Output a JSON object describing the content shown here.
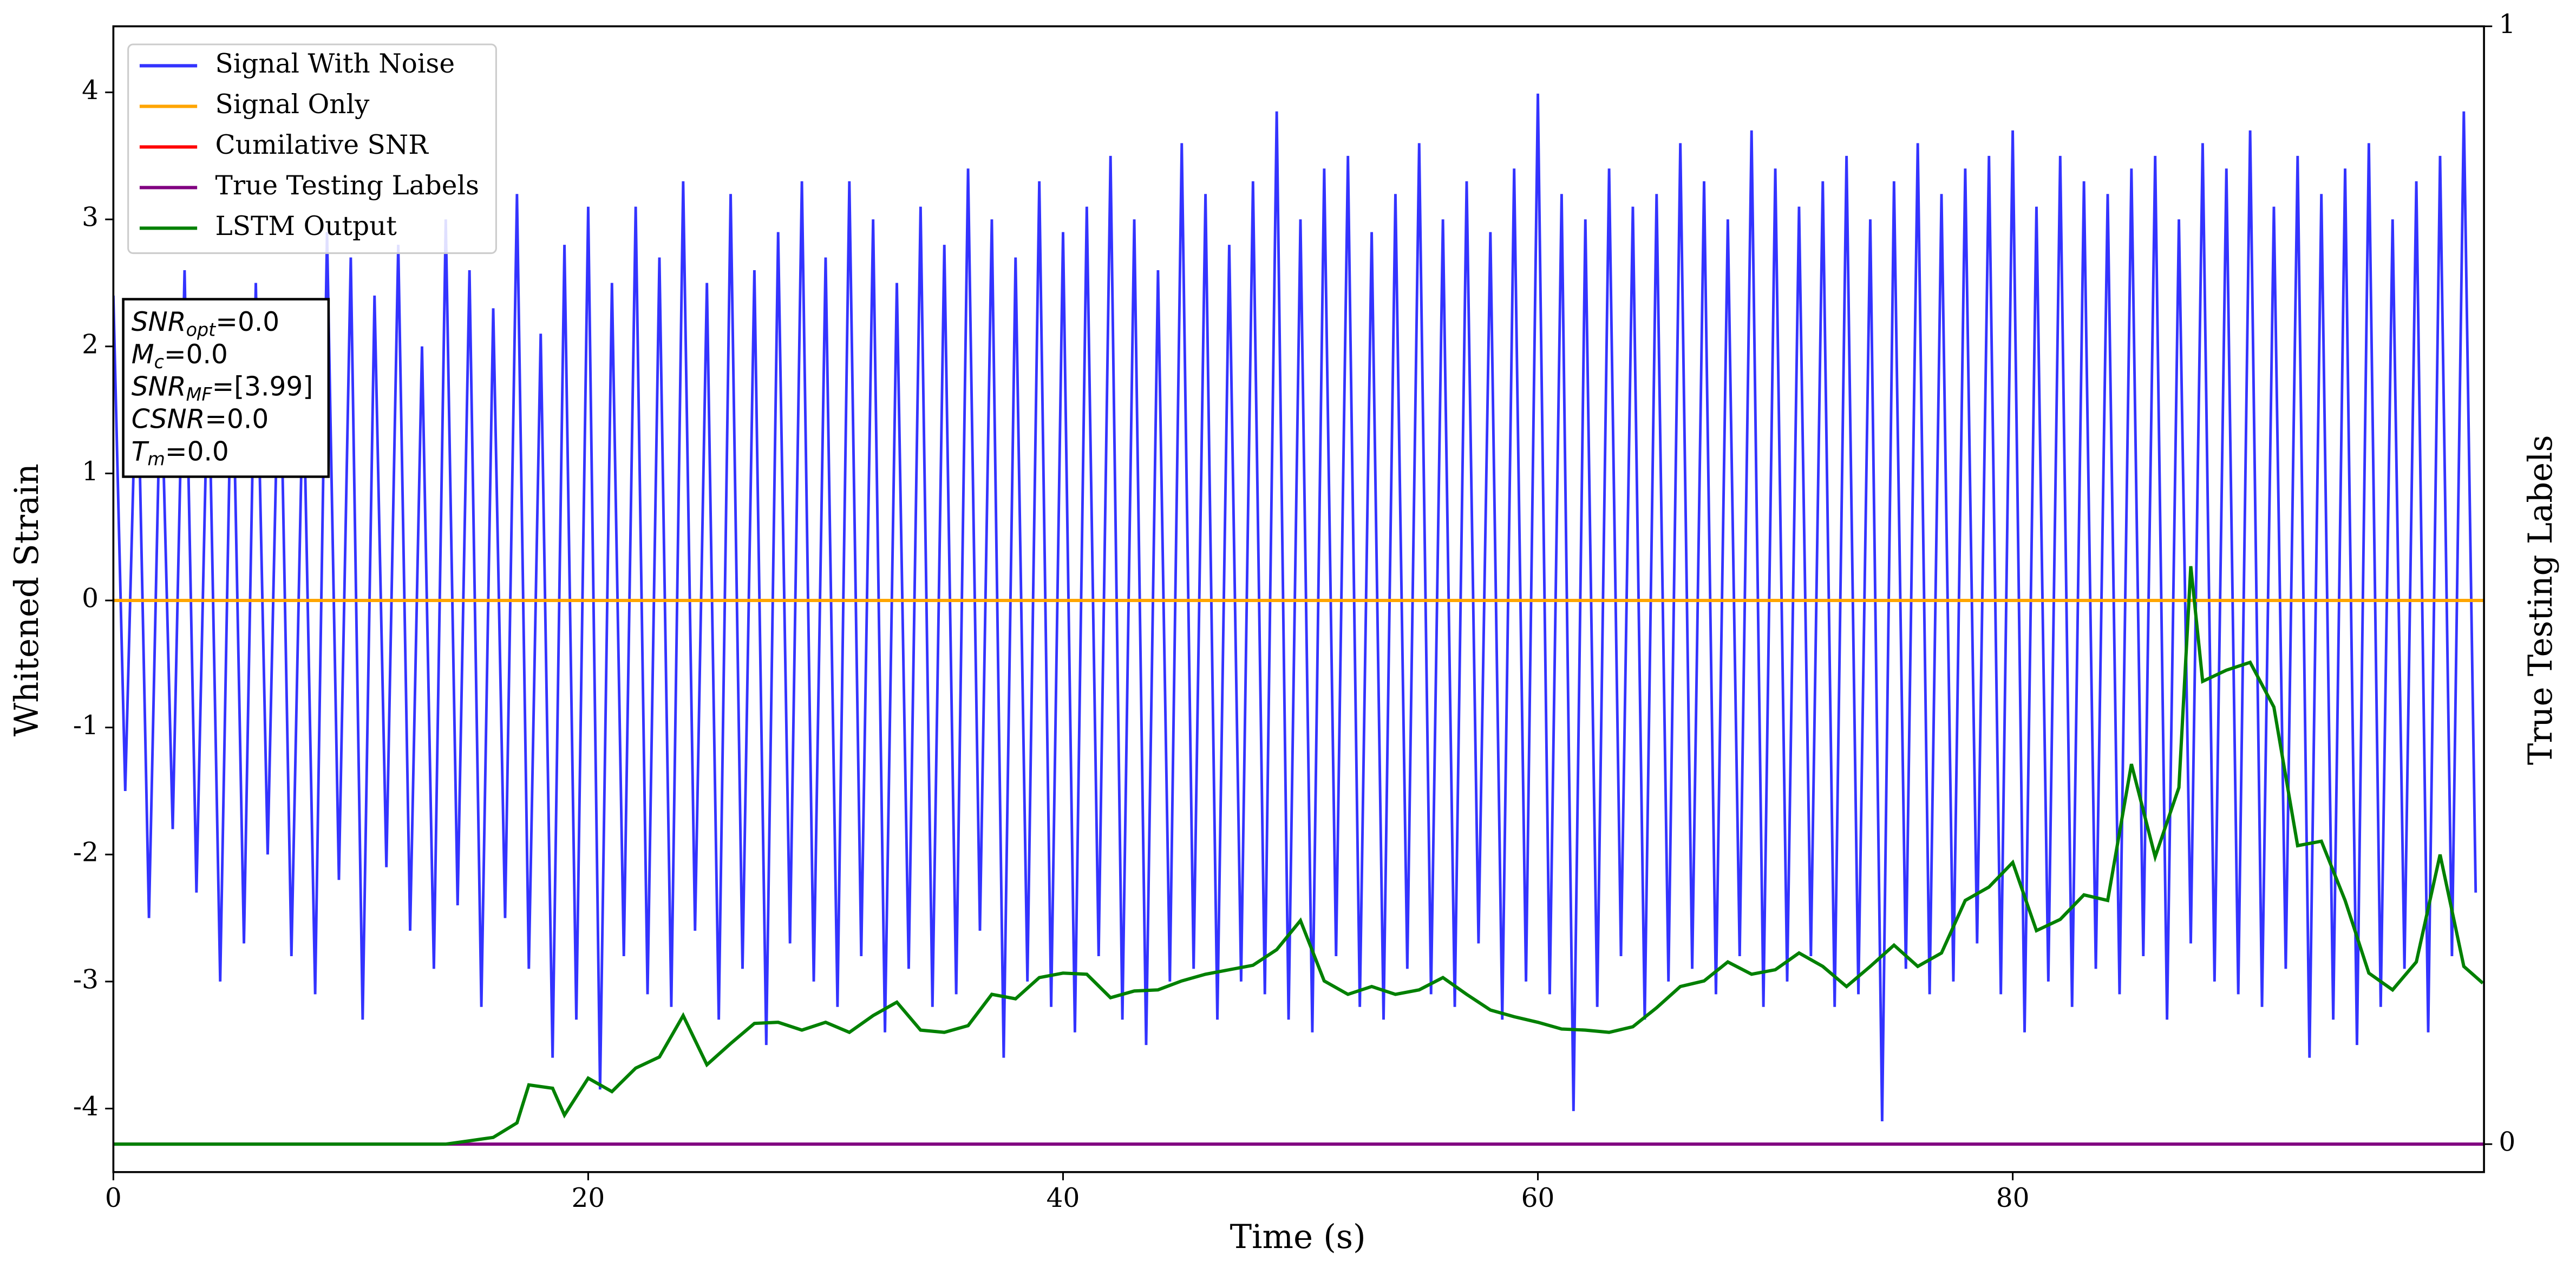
{
  "chart_data": {
    "type": "line",
    "xlabel": "Time (s)",
    "ylabel": "Whitened Strain",
    "y2label": "True Testing Labels",
    "xlim": [
      0,
      99.85
    ],
    "ylim": [
      -4.5,
      4.52
    ],
    "y2lim": [
      -0.025,
      1.0
    ],
    "xticks": [
      0,
      20,
      40,
      60,
      80
    ],
    "yticks": [
      -4,
      -3,
      -2,
      -1,
      0,
      1,
      2,
      3,
      4
    ],
    "y2ticks": [
      0,
      1
    ],
    "legend": "upper left",
    "annotation": [
      {
        "symbol": "SNR",
        "sub": "opt",
        "text": "=0.0"
      },
      {
        "symbol": "M",
        "sub": "c",
        "text": "=0.0"
      },
      {
        "symbol": "SNR",
        "sub": "MF",
        "text": "=[3.99]"
      },
      {
        "symbol": "CSNR",
        "text": "=0.0"
      },
      {
        "symbol": "T",
        "sub": "m",
        "text": "=0.0"
      }
    ],
    "series": [
      {
        "name": "Signal With Noise",
        "color": "#3333ff",
        "x": [
          0,
          0.5,
          1,
          1.5,
          2,
          2.5,
          3,
          3.5,
          4,
          4.5,
          5,
          5.5,
          6,
          6.5,
          7,
          7.5,
          8,
          8.5,
          9,
          9.5,
          10,
          10.5,
          11,
          11.5,
          12,
          12.5,
          13,
          13.5,
          14,
          14.5,
          15,
          15.5,
          16,
          16.5,
          17,
          17.5,
          18,
          18.5,
          19,
          19.5,
          20,
          20.5,
          21,
          21.5,
          22,
          22.5,
          23,
          23.5,
          24,
          24.5,
          25,
          25.5,
          26,
          26.5,
          27,
          27.5,
          28,
          28.5,
          29,
          29.5,
          30,
          30.5,
          31,
          31.5,
          32,
          32.5,
          33,
          33.5,
          34,
          34.5,
          35,
          35.5,
          36,
          36.5,
          37,
          37.5,
          38,
          38.5,
          39,
          39.5,
          40,
          40.5,
          41,
          41.5,
          42,
          42.5,
          43,
          43.5,
          44,
          44.5,
          45,
          45.5,
          46,
          46.5,
          47,
          47.5,
          48,
          48.5,
          49,
          49.5,
          50,
          50.5,
          51,
          51.5,
          52,
          52.5,
          53,
          53.5,
          54,
          54.5,
          55,
          55.5,
          56,
          56.5,
          57,
          57.5,
          58,
          58.5,
          59,
          59.5,
          60,
          60.5,
          61,
          61.5,
          62,
          62.5,
          63,
          63.5,
          64,
          64.5,
          65,
          65.5,
          66,
          66.5,
          67,
          67.5,
          68,
          68.5,
          69,
          69.5,
          70,
          70.5,
          71,
          71.5,
          72,
          72.5,
          73,
          73.5,
          74,
          74.5,
          75,
          75.5,
          76,
          76.5,
          77,
          77.5,
          78,
          78.5,
          79,
          79.5,
          80,
          80.5,
          81,
          81.5,
          82,
          82.5,
          83,
          83.5,
          84,
          84.5,
          85,
          85.5,
          86,
          86.5,
          87,
          87.5,
          88,
          88.5,
          89,
          89.5,
          90,
          90.5,
          91,
          91.5,
          92,
          92.5,
          93,
          93.5,
          94,
          94.5,
          95,
          95.5,
          96,
          96.5,
          97,
          97.5,
          98,
          98.5,
          99,
          99.5
        ],
        "values": [
          2.4,
          -1.5,
          2.1,
          -2.5,
          1.9,
          -1.8,
          2.6,
          -2.3,
          2.0,
          -3.0,
          2.2,
          -2.7,
          2.5,
          -2.0,
          2.3,
          -2.8,
          1.8,
          -3.1,
          2.9,
          -2.2,
          2.7,
          -3.3,
          2.4,
          -2.1,
          2.8,
          -2.6,
          2.0,
          -2.9,
          3.0,
          -2.4,
          2.6,
          -3.2,
          2.3,
          -2.5,
          3.2,
          -2.9,
          2.1,
          -3.6,
          2.8,
          -3.3,
          3.1,
          -3.85,
          2.5,
          -2.8,
          3.1,
          -3.1,
          2.7,
          -3.2,
          3.3,
          -2.6,
          2.5,
          -3.3,
          3.2,
          -2.9,
          2.6,
          -3.5,
          2.9,
          -2.7,
          3.3,
          -3.0,
          2.7,
          -3.2,
          3.3,
          -2.8,
          3.0,
          -3.4,
          2.5,
          -2.9,
          3.1,
          -3.2,
          2.8,
          -3.1,
          3.4,
          -2.6,
          3.0,
          -3.6,
          2.7,
          -3.0,
          3.3,
          -3.2,
          2.9,
          -3.4,
          3.1,
          -2.8,
          3.5,
          -3.3,
          3.0,
          -3.5,
          2.6,
          -3.0,
          3.6,
          -2.9,
          3.2,
          -3.3,
          2.8,
          -3.0,
          3.3,
          -3.1,
          3.85,
          -3.3,
          3.0,
          -3.4,
          3.4,
          -2.8,
          3.5,
          -3.2,
          2.9,
          -3.3,
          3.2,
          -2.9,
          3.6,
          -3.1,
          3.0,
          -3.2,
          3.3,
          -2.7,
          2.9,
          -3.3,
          3.4,
          -3.0,
          3.99,
          -3.1,
          3.2,
          -4.02,
          3.0,
          -3.2,
          3.4,
          -2.8,
          3.1,
          -3.3,
          3.2,
          -3.0,
          3.6,
          -2.9,
          3.3,
          -3.1,
          3.0,
          -2.8,
          3.7,
          -3.2,
          3.4,
          -3.0,
          3.1,
          -2.8,
          3.3,
          -3.2,
          3.5,
          -3.1,
          3.0,
          -4.1,
          3.3,
          -2.9,
          3.6,
          -3.1,
          3.2,
          -3.0,
          3.4,
          -2.7,
          3.5,
          -3.1,
          3.7,
          -3.4,
          3.1,
          -3.0,
          3.5,
          -3.2,
          3.3,
          -2.9,
          3.2,
          -3.1,
          3.4,
          -2.8,
          3.5,
          -3.3,
          3.0,
          -2.7,
          3.6,
          -3.0,
          3.4,
          -3.1,
          3.7,
          -3.2,
          3.1,
          -2.9,
          3.5,
          -3.6,
          3.2,
          -3.3,
          3.4,
          -3.5,
          3.6,
          -3.2,
          3.0,
          -2.9,
          3.3,
          -3.4,
          3.5,
          -2.8,
          3.85,
          -2.3
        ]
      },
      {
        "name": "Signal Only",
        "color": "#ffa500",
        "x": [
          0,
          99.85
        ],
        "values": [
          0,
          0
        ]
      },
      {
        "name": "Cumilative SNR",
        "color": "#ff0000",
        "x": [
          0,
          99.85
        ],
        "values": [
          0,
          0
        ]
      },
      {
        "name": "True Testing Labels",
        "color": "#800080",
        "axis": "y2",
        "x": [
          0,
          99.85
        ],
        "values": [
          0,
          0
        ]
      },
      {
        "name": "LSTM Output",
        "color": "#008000",
        "axis": "y2",
        "x": [
          0,
          14,
          15,
          16,
          17,
          17.5,
          18.5,
          19,
          20,
          21,
          22,
          23,
          24,
          25,
          26,
          27,
          28,
          29,
          30,
          31,
          32,
          33,
          34,
          35,
          36,
          37,
          38,
          39,
          40,
          41,
          42,
          43,
          44,
          45,
          46,
          47,
          48,
          49,
          50,
          51,
          52,
          53,
          54,
          55,
          56,
          57,
          58,
          59,
          60,
          61,
          62,
          63,
          64,
          65,
          66,
          67,
          68,
          69,
          70,
          71,
          72,
          73,
          74,
          75,
          76,
          77,
          78,
          79,
          80,
          81,
          82,
          83,
          84,
          85,
          86,
          87,
          87.5,
          88,
          89,
          90,
          91,
          92,
          93,
          94,
          95,
          96,
          97,
          98,
          99,
          99.8
        ],
        "values": [
          0,
          0,
          0.003,
          0.006,
          0.019,
          0.053,
          0.05,
          0.026,
          0.059,
          0.047,
          0.068,
          0.078,
          0.115,
          0.071,
          0.09,
          0.108,
          0.109,
          0.102,
          0.109,
          0.1,
          0.115,
          0.127,
          0.102,
          0.1,
          0.106,
          0.134,
          0.13,
          0.149,
          0.153,
          0.152,
          0.131,
          0.137,
          0.138,
          0.146,
          0.152,
          0.156,
          0.16,
          0.174,
          0.2,
          0.146,
          0.134,
          0.141,
          0.134,
          0.138,
          0.149,
          0.134,
          0.12,
          0.114,
          0.109,
          0.103,
          0.102,
          0.1,
          0.105,
          0.122,
          0.141,
          0.146,
          0.163,
          0.152,
          0.156,
          0.171,
          0.159,
          0.141,
          0.159,
          0.178,
          0.159,
          0.171,
          0.218,
          0.23,
          0.252,
          0.191,
          0.201,
          0.223,
          0.218,
          0.34,
          0.257,
          0.319,
          0.517,
          0.414,
          0.424,
          0.431,
          0.391,
          0.267,
          0.271,
          0.218,
          0.153,
          0.138,
          0.163,
          0.259,
          0.159,
          0.144
        ]
      }
    ]
  }
}
